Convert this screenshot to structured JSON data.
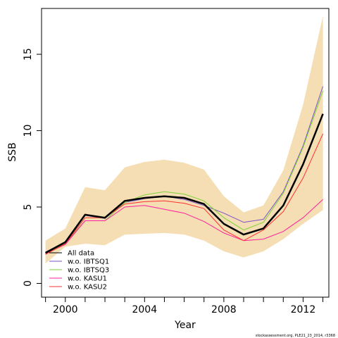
{
  "chart_data": {
    "type": "line",
    "xlabel": "Year",
    "ylabel": "SSB",
    "xlim": [
      1998.8,
      2013.3
    ],
    "ylim": [
      -0.9,
      18
    ],
    "x_ticks": [
      1999,
      2000,
      2001,
      2002,
      2003,
      2004,
      2005,
      2006,
      2007,
      2008,
      2009,
      2010,
      2011,
      2012,
      2013
    ],
    "x_tick_labels": [
      {
        "value": 2000,
        "label": "2000"
      },
      {
        "value": 2004,
        "label": "2004"
      },
      {
        "value": 2008,
        "label": "2008"
      },
      {
        "value": 2012,
        "label": "2012"
      }
    ],
    "y_ticks": [
      {
        "value": 0,
        "label": "0"
      },
      {
        "value": 5,
        "label": "5"
      },
      {
        "value": 10,
        "label": "10"
      },
      {
        "value": 15,
        "label": "15"
      }
    ],
    "x": [
      1999,
      2000,
      2001,
      2002,
      2003,
      2004,
      2005,
      2006,
      2007,
      2008,
      2009,
      2010,
      2011,
      2012,
      2013
    ],
    "band": {
      "color": "#f5deb3",
      "lower": [
        1.3,
        2.4,
        2.6,
        2.5,
        3.2,
        3.25,
        3.3,
        3.2,
        2.8,
        2.1,
        1.7,
        2.1,
        2.9,
        3.9,
        4.8
      ],
      "upper": [
        2.8,
        3.6,
        6.3,
        6.1,
        7.6,
        7.95,
        8.1,
        7.9,
        7.45,
        5.7,
        4.65,
        5.1,
        7.4,
        11.7,
        17.5
      ]
    },
    "series": [
      {
        "name": "All data",
        "color": "#000000",
        "width": 2.5,
        "values": [
          2.0,
          2.7,
          4.5,
          4.3,
          5.4,
          5.6,
          5.7,
          5.6,
          5.2,
          3.9,
          3.2,
          3.6,
          5.1,
          7.8,
          11.1
        ]
      },
      {
        "name": "w.o. IBTSQ1",
        "color": "#7b52c7",
        "width": 1,
        "values": [
          2.05,
          2.7,
          4.45,
          4.25,
          5.3,
          5.55,
          5.7,
          5.5,
          5.1,
          4.6,
          4.0,
          4.2,
          6.0,
          9.0,
          12.9
        ]
      },
      {
        "name": "w.o. IBTSQ3",
        "color": "#7fd23a",
        "width": 1,
        "values": [
          1.95,
          2.65,
          4.1,
          4.1,
          5.3,
          5.8,
          6.0,
          5.85,
          5.4,
          4.3,
          3.5,
          4.0,
          5.9,
          8.9,
          12.6
        ]
      },
      {
        "name": "w.o. KASU1",
        "color": "#ff1fa0",
        "width": 1,
        "values": [
          1.95,
          2.55,
          4.1,
          4.1,
          5.0,
          5.1,
          4.85,
          4.6,
          4.05,
          3.3,
          2.8,
          2.9,
          3.4,
          4.3,
          5.5
        ]
      },
      {
        "name": "w.o. KASU2",
        "color": "#ff3030",
        "width": 1,
        "values": [
          1.9,
          2.6,
          4.3,
          4.3,
          5.2,
          5.35,
          5.4,
          5.25,
          4.9,
          3.5,
          2.8,
          3.5,
          4.7,
          6.9,
          9.8
        ]
      }
    ],
    "legend_position": "bottom-left",
    "grid": false
  },
  "footnote": "stockassessment.org, PLE21_23_2014, r3368"
}
